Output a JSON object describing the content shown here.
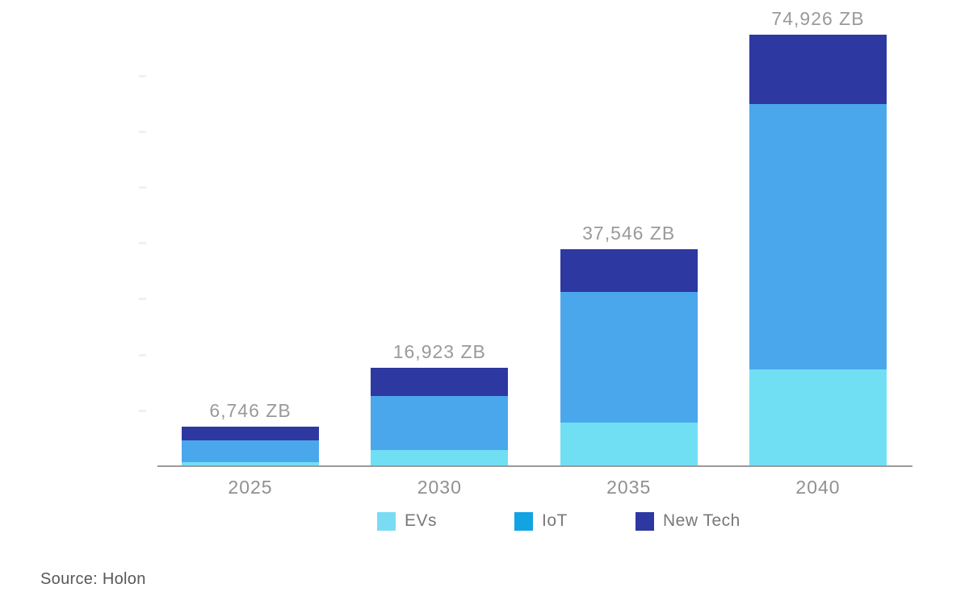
{
  "chart_data": {
    "type": "bar",
    "stacked": true,
    "title": "",
    "unit": "ZB",
    "categories": [
      "2025",
      "2030",
      "2035",
      "2040"
    ],
    "series": [
      {
        "name": "EVs",
        "color": "#70DFF4",
        "legend_swatch": "#7ADCF2",
        "values": [
          575,
          2600,
          7430,
          16720
        ]
      },
      {
        "name": "IoT",
        "color": "#4BA7EC",
        "legend_swatch": "#12A3E3",
        "values": [
          3731,
          9485,
          22740,
          46050
        ]
      },
      {
        "name": "New Tech",
        "color": "#2E38A1",
        "legend_swatch": "#2E38A1",
        "values": [
          2440,
          4838,
          7376,
          12156
        ]
      }
    ],
    "totals": [
      6746,
      16923,
      37546,
      74926
    ],
    "total_labels": [
      "6,746 ZB",
      "16,923 ZB",
      "37,546 ZB",
      "74,926 ZB"
    ],
    "ylim": [
      0,
      76000
    ],
    "y_axis_labels": "hidden",
    "grid": "off",
    "legend_position": "bottom"
  },
  "footer": {
    "source": "Source: Holon"
  },
  "colors": {
    "background": "#FFFFFF",
    "axis_line": "#9A9A9A",
    "value_label": "#9A9A9A",
    "category_label": "#8F9093",
    "legend_label": "#77787B",
    "source_text": "#58585A",
    "faint_tick": "#F2F0EE"
  }
}
